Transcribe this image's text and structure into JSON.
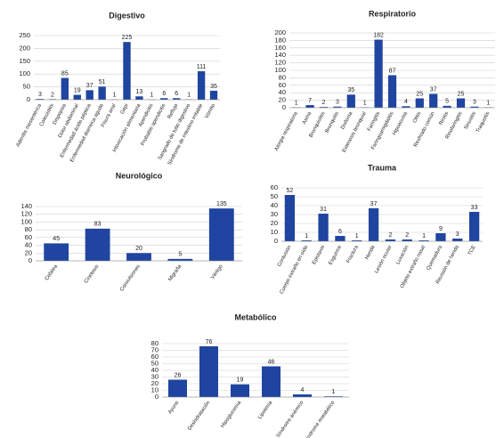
{
  "chart_data": [
    {
      "type": "bar",
      "title": "Digestivo",
      "color": "#1f45a0",
      "grid": true,
      "categories": [
        "Adenitis mesentérica",
        "Colecistitis",
        "Dispepsia",
        "Dolor abdominal",
        "Enfermedad ácido péptica",
        "Enfermedad diarreica aguda",
        "Fisura anal",
        "Gepi",
        "Intoxicación alimentaria",
        "Apendicitis",
        "Probable apendicitis",
        "Reflujo",
        "Sangrado de tubo digestivo",
        "Síndrome de intestino irritable",
        "Vómito"
      ],
      "values": [
        3,
        2,
        85,
        19,
        37,
        51,
        1,
        225,
        13,
        1,
        6,
        6,
        1,
        111,
        35
      ],
      "ylim": [
        0,
        250
      ],
      "yticks": [
        0,
        50,
        100,
        150,
        200,
        250
      ]
    },
    {
      "type": "bar",
      "title": "Respiratorio",
      "color": "#1f45a0",
      "grid": true,
      "categories": [
        "Alergia respiratoria",
        "Asma",
        "Bronquiolitis",
        "Bronquitis",
        "Disfonía",
        "Estenosis bronquial",
        "Faringitis",
        "Faringoamigdalitis",
        "Hipoacusia",
        "Otitis",
        "Resfriado común",
        "Rinitis",
        "Rinofaringitis",
        "Sinusitis",
        "Traqueítis"
      ],
      "values": [
        1,
        7,
        2,
        3,
        35,
        1,
        182,
        87,
        4,
        25,
        37,
        5,
        25,
        3,
        1
      ],
      "ylim": [
        0,
        200
      ],
      "yticks": [
        0,
        20,
        40,
        60,
        80,
        100,
        120,
        140,
        160,
        180,
        200
      ]
    },
    {
      "type": "bar",
      "title": "Neurológico",
      "color": "#1f45a0",
      "grid": true,
      "categories": [
        "Cefalea",
        "Cinetosis",
        "Convulsiones",
        "Migraña",
        "Vértigo"
      ],
      "values": [
        45,
        83,
        20,
        5,
        135
      ],
      "ylim": [
        0,
        140
      ],
      "yticks": [
        0,
        20,
        40,
        60,
        80,
        100,
        120,
        140
      ]
    },
    {
      "type": "bar",
      "title": "Trauma",
      "color": "#1f45a0",
      "grid": true,
      "categories": [
        "Contusión",
        "Cuerpo extraño en oído",
        "Epistaxis",
        "Esguince",
        "Fractura",
        "Herida",
        "Lesión ocular",
        "Luxación",
        "Objeto extraño nasal",
        "Quemadura",
        "Revisión de herida",
        "TCE"
      ],
      "values": [
        52,
        1,
        31,
        6,
        1,
        37,
        2,
        2,
        1,
        9,
        3,
        33
      ],
      "ylim": [
        0,
        60
      ],
      "yticks": [
        0,
        10,
        20,
        30,
        40,
        50,
        60
      ]
    },
    {
      "type": "bar",
      "title": "Metabólico",
      "color": "#1f45a0",
      "grid": true,
      "categories": [
        "Ayuno",
        "Deshidratación",
        "Hipoglucemia",
        "Lipotimia",
        "Síndrome anémico",
        "Síndrome metabólico"
      ],
      "values": [
        26,
        76,
        19,
        46,
        4,
        1
      ],
      "ylim": [
        0,
        80
      ],
      "yticks": [
        0,
        10,
        20,
        30,
        40,
        50,
        60,
        70,
        80
      ]
    }
  ]
}
